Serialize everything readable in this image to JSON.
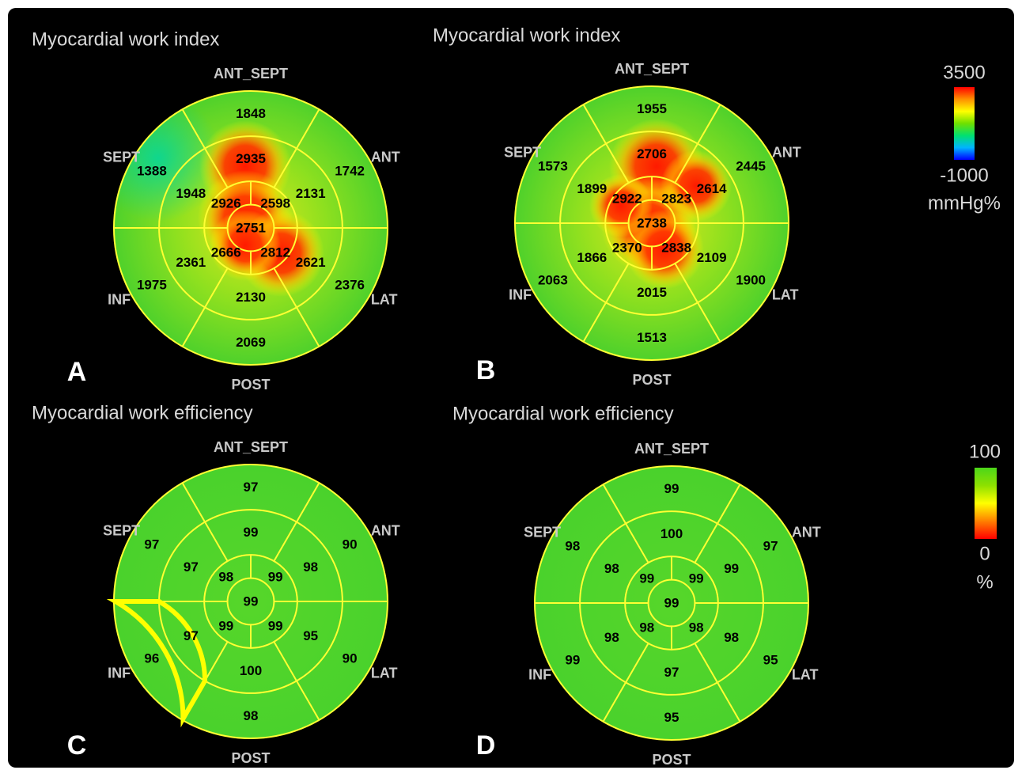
{
  "segment_order": [
    "basal-ant-sept",
    "basal-ant",
    "basal-lat",
    "basal-post",
    "basal-inf",
    "basal-sept",
    "mid-ant-sept",
    "mid-ant",
    "mid-lat",
    "mid-post",
    "mid-inf",
    "mid-sept",
    "apical-ant",
    "apical-lat",
    "apical-inf",
    "apical-sept",
    "apex"
  ],
  "panels": [
    {
      "id": "A",
      "letter": "A",
      "title": "Myocardial work index",
      "kind": "work",
      "labels": {
        "top": "ANT_SEPT",
        "top_right": "ANT",
        "bottom_right": "LAT",
        "bottom": "POST",
        "bottom_left": "INF",
        "top_left": "SEPT"
      },
      "values": [
        1848,
        1742,
        2376,
        2069,
        1975,
        1388,
        2935,
        2131,
        2621,
        2130,
        2361,
        1948,
        2598,
        2812,
        2666,
        2926,
        2751
      ],
      "highlight_segment": null
    },
    {
      "id": "B",
      "letter": "B",
      "title": "Myocardial work index",
      "kind": "work",
      "labels": {
        "top": "ANT_SEPT",
        "top_right": "ANT",
        "bottom_right": "LAT",
        "bottom": "POST",
        "bottom_left": "INF",
        "top_left": "SEPT"
      },
      "values": [
        1955,
        2445,
        1900,
        1513,
        2063,
        1573,
        2706,
        2614,
        2109,
        2015,
        1866,
        1899,
        2823,
        2838,
        2370,
        2922,
        2738
      ],
      "highlight_segment": null
    },
    {
      "id": "C",
      "letter": "C",
      "title": "Myocardial work efficiency",
      "kind": "efficiency",
      "labels": {
        "top": "ANT_SEPT",
        "top_right": "ANT",
        "bottom_right": "LAT",
        "bottom": "POST",
        "bottom_left": "INF",
        "top_left": "SEPT"
      },
      "values": [
        97,
        90,
        90,
        98,
        96,
        97,
        99,
        98,
        95,
        100,
        97,
        97,
        99,
        99,
        99,
        98,
        99
      ],
      "highlight_segment": "basal-inf"
    },
    {
      "id": "D",
      "letter": "D",
      "title": "Myocardial work efficiency",
      "kind": "efficiency",
      "labels": {
        "top": "ANT_SEPT",
        "top_right": "ANT",
        "bottom_right": "LAT",
        "bottom": "POST",
        "bottom_left": "INF",
        "top_left": "SEPT"
      },
      "values": [
        99,
        97,
        95,
        95,
        99,
        98,
        100,
        99,
        98,
        97,
        98,
        98,
        99,
        98,
        98,
        99,
        99
      ],
      "highlight_segment": null
    }
  ],
  "scales": {
    "work": {
      "max_label": "3500",
      "min_label": "-1000",
      "unit": "mmHg%",
      "min": -1000,
      "max": 3500,
      "colors": [
        "#0000ff",
        "#00b4ff",
        "#00e070",
        "#6fe000",
        "#ffff00",
        "#ff9000",
        "#ff0000"
      ]
    },
    "efficiency": {
      "max_label": "100",
      "min_label": "0",
      "unit": "%",
      "min": 0,
      "max": 100,
      "colors": [
        "#ff0000",
        "#ff8000",
        "#ffff00",
        "#8ee000",
        "#4cd61a"
      ]
    }
  },
  "colors": {
    "background": "#000000",
    "grid": "#ffff33",
    "base_green": "#56d62a",
    "hot": "#ff2200",
    "highlight": "#ffff00"
  }
}
